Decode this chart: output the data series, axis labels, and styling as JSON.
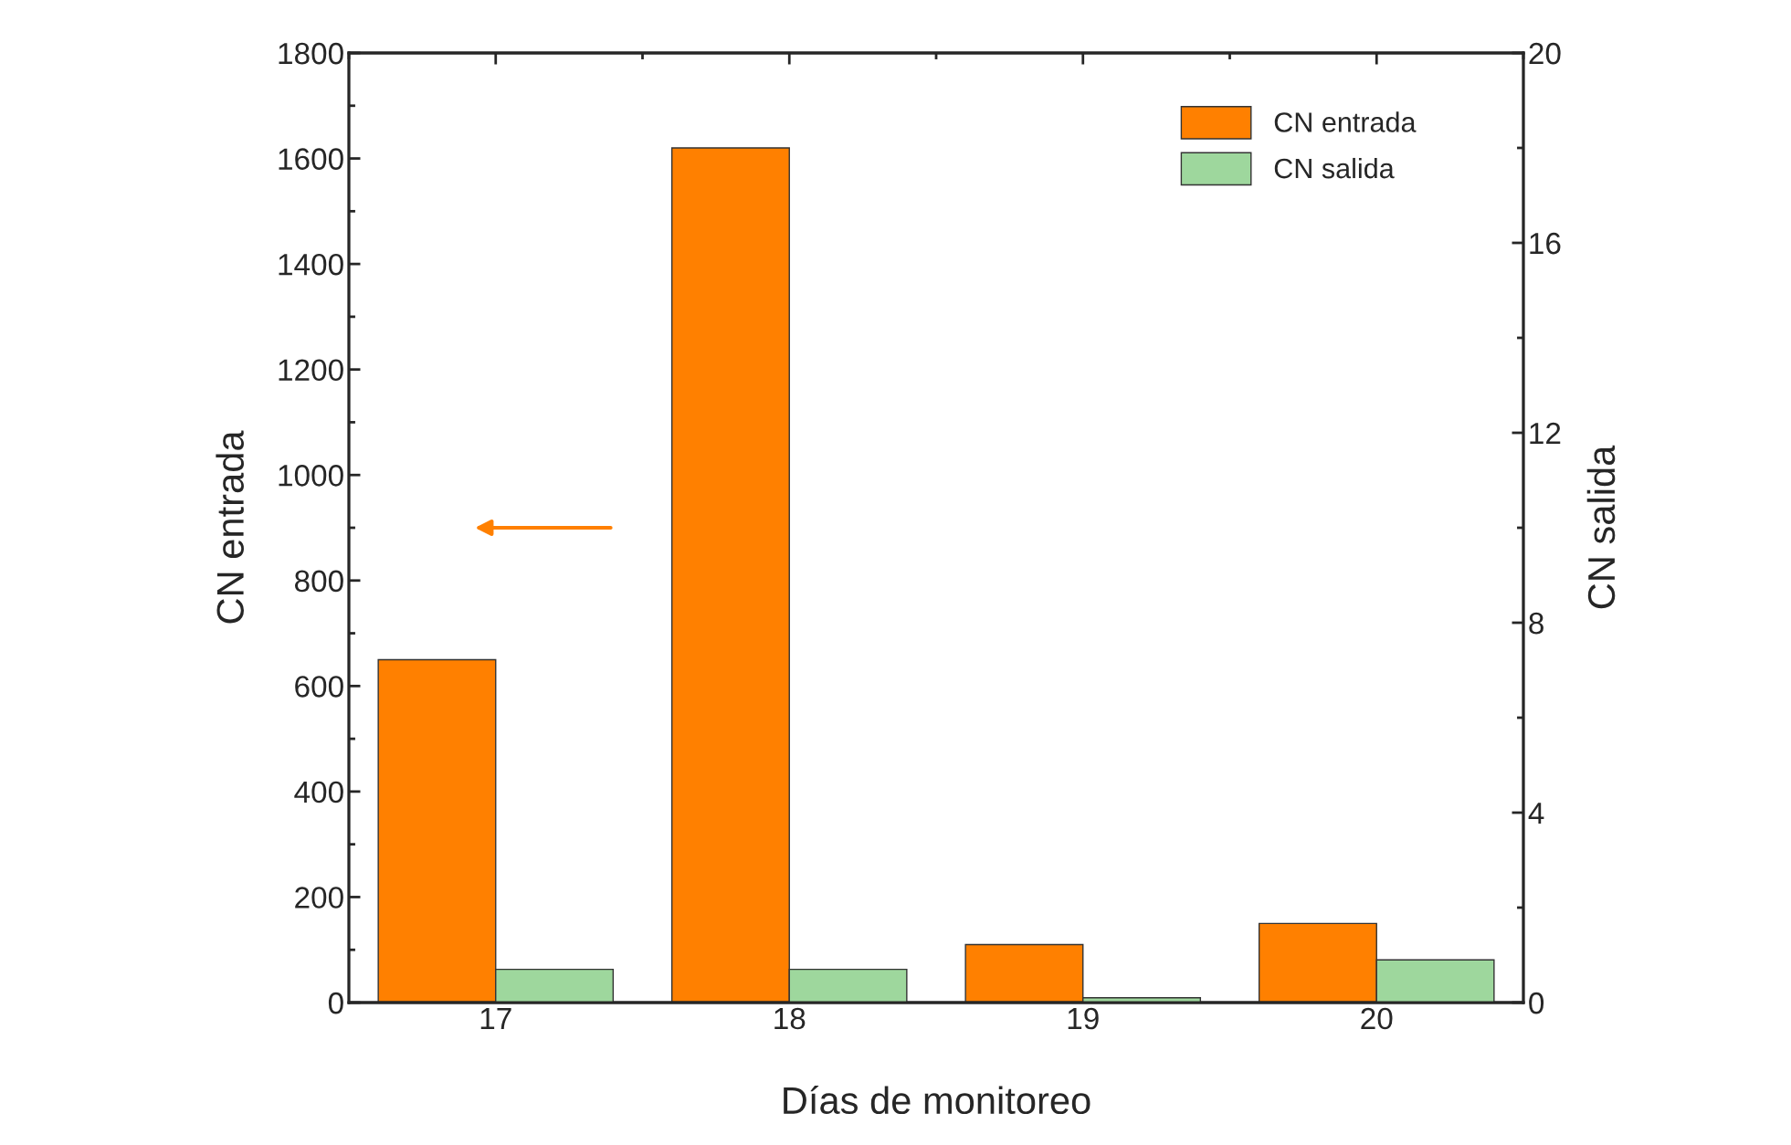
{
  "chart_data": {
    "type": "bar",
    "xlabel": "Días de monitoreo",
    "ylabel": "CN entrada",
    "y2label": "CN salida",
    "categories": [
      "17",
      "18",
      "19",
      "20"
    ],
    "series": [
      {
        "name": "CN entrada",
        "color": "#ff8000",
        "values": [
          650,
          1620,
          110,
          150
        ]
      },
      {
        "name": "CN salida",
        "color": "#9ed79d",
        "values": [
          0.7,
          0.7,
          0.1,
          0.9
        ],
        "axis": "y2"
      }
    ],
    "ylim": [
      0,
      1800
    ],
    "yticks": [
      0,
      200,
      400,
      600,
      800,
      1000,
      1200,
      1400,
      1600,
      1800
    ],
    "y2lim": [
      0,
      20
    ],
    "y2ticks": [
      0,
      4,
      8,
      12,
      16,
      20
    ],
    "legend": "top right",
    "grid": false
  }
}
